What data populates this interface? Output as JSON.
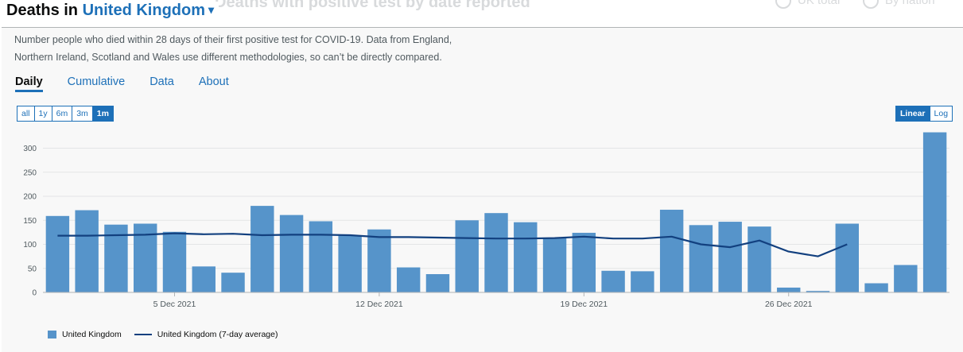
{
  "ghost": {
    "title": "Deaths with positive test by date reported",
    "radio1": "UK total",
    "radio2": "By nation"
  },
  "header": {
    "prefix": "Deaths in",
    "area": "United Kingdom",
    "caret": "▾"
  },
  "description": "Number people who died within 28 days of their first positive test for COVID-19. Data from England, Northern Ireland, Scotland and Wales use different methodologies, so can’t be directly compared.",
  "tabs": [
    "Daily",
    "Cumulative",
    "Data",
    "About"
  ],
  "range_buttons": [
    "all",
    "1y",
    "6m",
    "3m",
    "1m"
  ],
  "range_selected": "1m",
  "scale_buttons": [
    "Linear",
    "Log"
  ],
  "scale_selected": "Linear",
  "colors": {
    "bar": "#5694ca",
    "line": "#12407f",
    "accent": "#1d70b8"
  },
  "chart_data": {
    "type": "bar",
    "title": "",
    "ylim": [
      0,
      330
    ],
    "yticks": [
      0,
      50,
      100,
      150,
      200,
      250,
      300
    ],
    "xtick_labels": [
      "5 Dec 2021",
      "12 Dec 2021",
      "19 Dec 2021",
      "26 Dec 2021"
    ],
    "categories": [
      "1 Dec 2021",
      "2 Dec 2021",
      "3 Dec 2021",
      "4 Dec 2021",
      "5 Dec 2021",
      "6 Dec 2021",
      "7 Dec 2021",
      "8 Dec 2021",
      "9 Dec 2021",
      "10 Dec 2021",
      "11 Dec 2021",
      "12 Dec 2021",
      "13 Dec 2021",
      "14 Dec 2021",
      "15 Dec 2021",
      "16 Dec 2021",
      "17 Dec 2021",
      "18 Dec 2021",
      "19 Dec 2021",
      "20 Dec 2021",
      "21 Dec 2021",
      "22 Dec 2021",
      "23 Dec 2021",
      "24 Dec 2021",
      "25 Dec 2021",
      "26 Dec 2021",
      "27 Dec 2021",
      "28 Dec 2021",
      "29 Dec 2021",
      "30 Dec 2021",
      "31 Dec 2021"
    ],
    "series": [
      {
        "name": "United Kingdom",
        "kind": "bar",
        "values": [
          159,
          171,
          141,
          143,
          126,
          54,
          41,
          180,
          161,
          148,
          119,
          131,
          52,
          38,
          150,
          165,
          146,
          113,
          124,
          45,
          44,
          172,
          140,
          147,
          137,
          10,
          3,
          143,
          19,
          57,
          333
        ]
      },
      {
        "name": "United Kingdom (7-day average)",
        "kind": "line",
        "values": [
          118,
          118,
          119,
          120,
          123,
          121,
          122,
          119,
          120,
          120,
          119,
          115,
          115,
          114,
          113,
          112,
          112,
          113,
          116,
          112,
          112,
          116,
          100,
          94,
          108,
          85,
          75,
          100,
          null,
          null,
          null
        ]
      }
    ]
  }
}
